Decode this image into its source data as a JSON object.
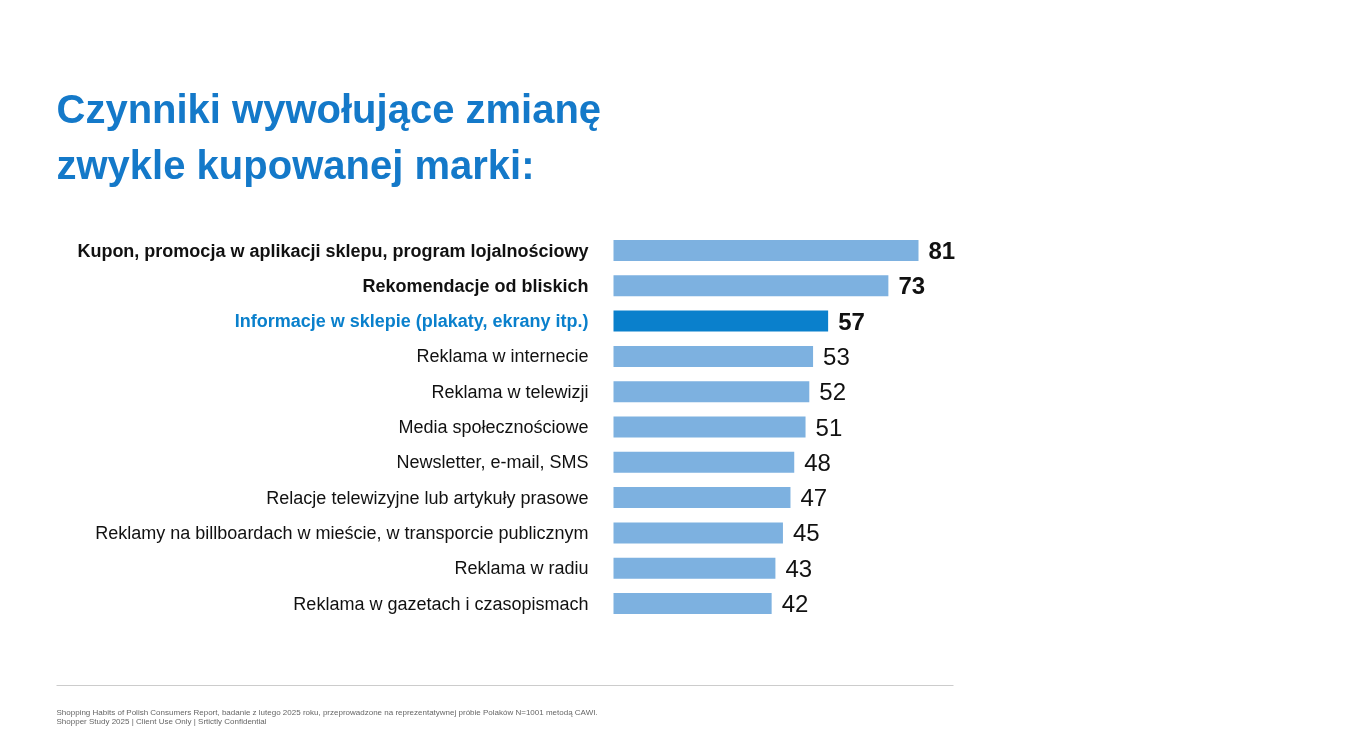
{
  "chart_data": {
    "type": "bar",
    "orientation": "horizontal",
    "title": "Czynniki wywołujące zmianę zwykle kupowanej marki:",
    "categories": [
      "Kupon, promocja w aplikacji sklepu, program lojalnościowy",
      "Rekomendacje od bliskich",
      "Informacje w sklepie (plakaty, ekrany itp.)",
      "Reklama w internecie",
      "Reklama w telewizji",
      "Media społecznościowe",
      "Newsletter, e-mail, SMS",
      "Relacje telewizyjne lub artykuły prasowe",
      "Reklamy na billboardach w mieście, w transporcie publicznym",
      "Reklama w radiu",
      "Reklama w gazetach i czasopismach"
    ],
    "values": [
      81,
      73,
      57,
      53,
      52,
      51,
      48,
      47,
      45,
      43,
      42
    ],
    "colors": [
      "#7db1e0",
      "#7db1e0",
      "#0a80cc",
      "#7db1e0",
      "#7db1e0",
      "#7db1e0",
      "#7db1e0",
      "#7db1e0",
      "#7db1e0",
      "#7db1e0",
      "#7db1e0"
    ],
    "data_labels": true,
    "grid": false,
    "annotations": [
      "Shopping Habits of Polish Consumers Report, badanie z lutego 2025 roku, przeprowadzone na reprezentatywnej próbie Polaków N=1001 metodą CAWI.",
      "Shopper Study 2025 | Client Use Only | Srtictly Confidential"
    ]
  }
}
